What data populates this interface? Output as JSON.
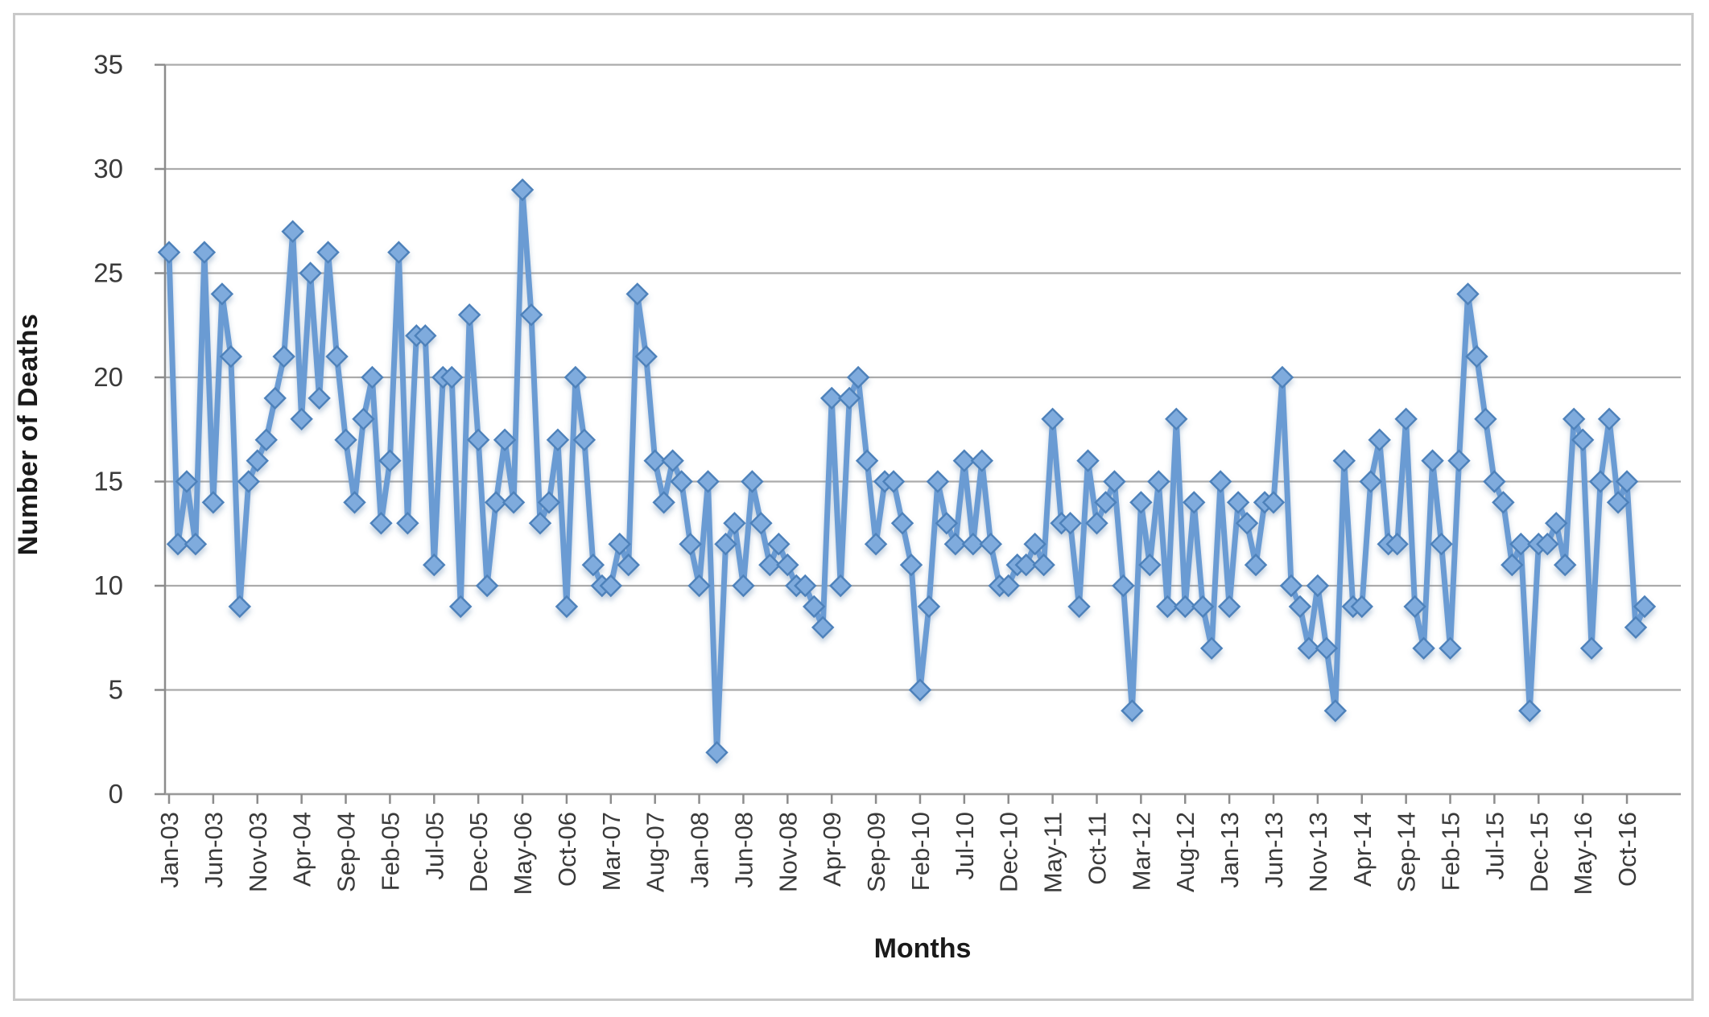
{
  "chart_data": {
    "type": "line",
    "title": "",
    "xlabel": "Months",
    "ylabel": "Number of Deaths",
    "ylim": [
      0,
      35
    ],
    "y_ticks": [
      0,
      5,
      10,
      15,
      20,
      25,
      30,
      35
    ],
    "grid": "horizontal",
    "legend": "none",
    "x_start": "Jan-03",
    "x_end": "Dec-16",
    "x_tick_interval": 5,
    "x_tick_labels": [
      "Jan-03",
      "Jun-03",
      "Nov-03",
      "Apr-04",
      "Sep-04",
      "Feb-05",
      "Jul-05",
      "Dec-05",
      "May-06",
      "Oct-06",
      "Mar-07",
      "Aug-07",
      "Jan-08",
      "Jun-08",
      "Nov-08",
      "Apr-09",
      "Sep-09",
      "Feb-10",
      "Jul-10",
      "Dec-10",
      "May-11",
      "Oct-11",
      "Mar-12",
      "Aug-12",
      "Jan-13",
      "Jun-13",
      "Nov-13",
      "Apr-14",
      "Sep-14",
      "Feb-15",
      "Jul-15",
      "Dec-15",
      "May-16",
      "Oct-16"
    ],
    "series": [
      {
        "name": "Number of Deaths",
        "values": [
          26,
          12,
          15,
          12,
          26,
          14,
          24,
          21,
          9,
          15,
          16,
          17,
          19,
          21,
          27,
          18,
          25,
          19,
          26,
          21,
          17,
          14,
          18,
          20,
          13,
          16,
          26,
          13,
          22,
          22,
          11,
          20,
          20,
          9,
          23,
          17,
          10,
          14,
          17,
          14,
          29,
          23,
          13,
          14,
          17,
          9,
          20,
          17,
          11,
          10,
          10,
          12,
          11,
          24,
          21,
          16,
          14,
          16,
          15,
          12,
          10,
          15,
          2,
          12,
          13,
          10,
          15,
          13,
          11,
          12,
          11,
          10,
          10,
          9,
          8,
          19,
          10,
          19,
          20,
          16,
          12,
          15,
          15,
          13,
          11,
          5,
          9,
          15,
          13,
          12,
          16,
          12,
          16,
          12,
          10,
          10,
          11,
          11,
          12,
          11,
          18,
          13,
          13,
          9,
          16,
          13,
          14,
          15,
          10,
          4,
          14,
          11,
          15,
          9,
          18,
          9,
          14,
          9,
          7,
          15,
          9,
          14,
          13,
          11,
          14,
          14,
          20,
          10,
          9,
          7,
          10,
          7,
          4,
          16,
          9,
          9,
          15,
          17,
          12,
          12,
          18,
          9,
          7,
          16,
          12,
          7,
          16,
          24,
          21,
          18,
          15,
          14,
          11,
          12,
          4,
          12,
          12,
          13,
          11,
          18,
          17,
          7,
          15,
          18,
          14,
          15,
          8,
          9
        ]
      }
    ],
    "line_color": "#6A9BD3",
    "marker": "diamond",
    "marker_fill": "#7FABDD",
    "marker_stroke": "#4E81BA",
    "gridline_color": "#ababab",
    "axis_line_color": "#8c8c8c",
    "axis_text_color": "#3a3a3a",
    "frame_color": "#c9c9c9"
  }
}
